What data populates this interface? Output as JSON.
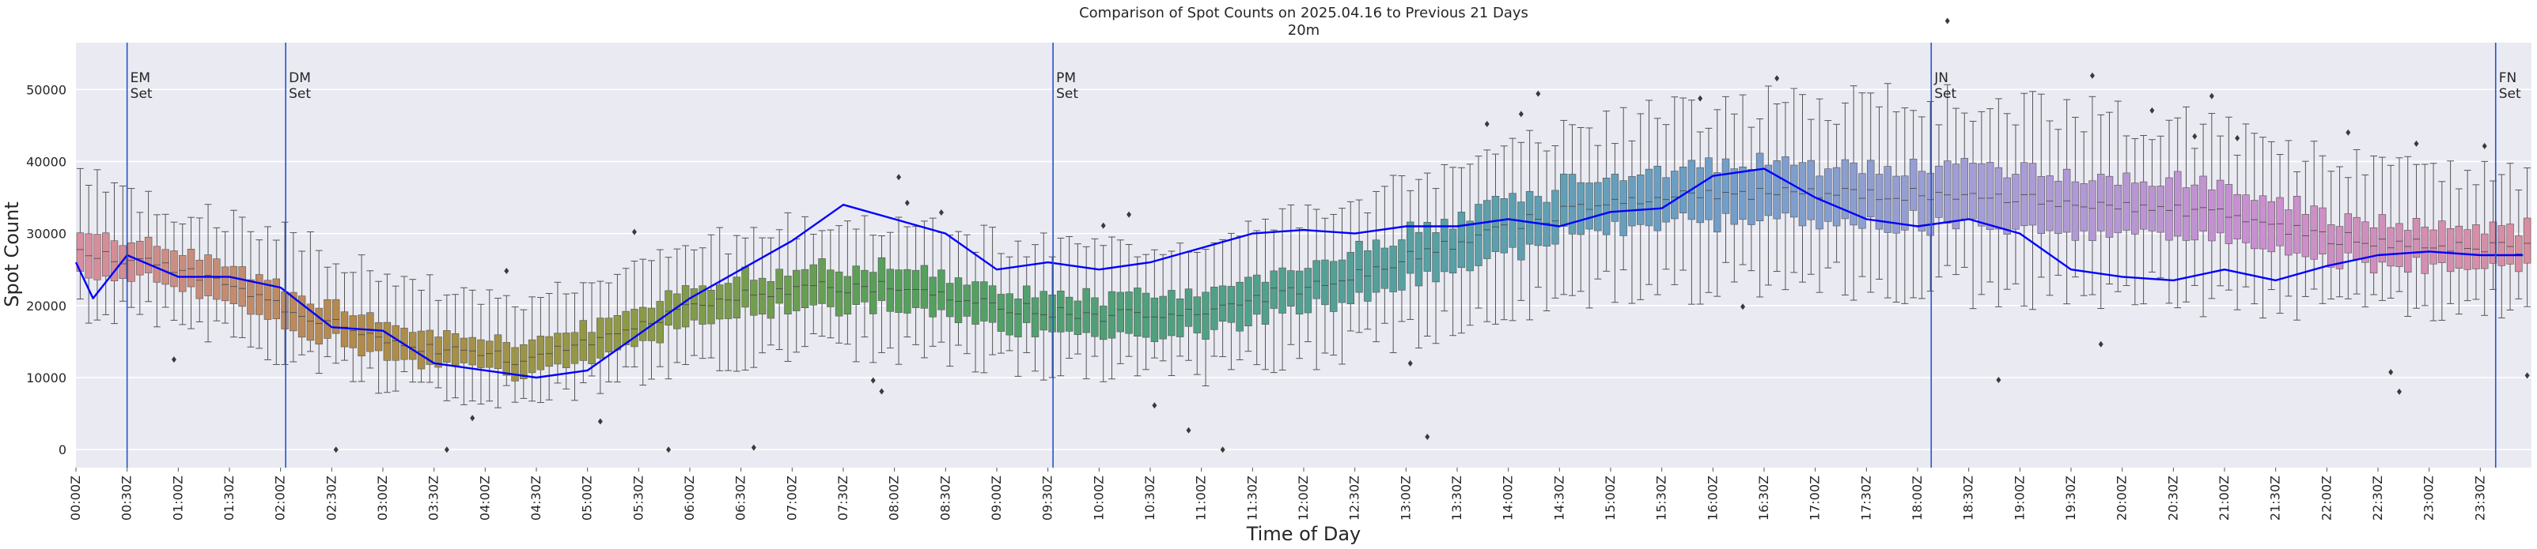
{
  "chart_data": {
    "type": "box",
    "title": "Comparison of Spot Counts on 2025.04.16 to Previous 21 Days",
    "subtitle": "20m",
    "xlabel": "Time of Day",
    "ylabel": "Spot Count",
    "ylim": [
      -2500,
      56500
    ],
    "yticks": [
      0,
      10000,
      20000,
      30000,
      40000,
      50000
    ],
    "ytick_labels": [
      "0",
      "10000",
      "20000",
      "30000",
      "40000",
      "50000"
    ],
    "bin_minutes": 5,
    "num_bins": 288,
    "xtick_labels": [
      "00:00Z",
      "00:30Z",
      "01:00Z",
      "01:30Z",
      "02:00Z",
      "02:30Z",
      "03:00Z",
      "03:30Z",
      "04:00Z",
      "04:30Z",
      "05:00Z",
      "05:30Z",
      "06:00Z",
      "06:30Z",
      "07:00Z",
      "07:30Z",
      "08:00Z",
      "08:30Z",
      "09:00Z",
      "09:30Z",
      "10:00Z",
      "10:30Z",
      "11:00Z",
      "11:30Z",
      "12:00Z",
      "12:30Z",
      "13:00Z",
      "13:30Z",
      "14:00Z",
      "14:30Z",
      "15:00Z",
      "15:30Z",
      "16:00Z",
      "16:30Z",
      "17:00Z",
      "17:30Z",
      "18:00Z",
      "18:30Z",
      "19:00Z",
      "19:30Z",
      "20:00Z",
      "20:30Z",
      "21:00Z",
      "21:30Z",
      "22:00Z",
      "22:30Z",
      "23:00Z",
      "23:30Z"
    ],
    "median_profile": [
      {
        "t": "00:00Z",
        "median": 28000,
        "low": 20000,
        "high": 38000
      },
      {
        "t": "01:00Z",
        "median": 25000,
        "low": 18000,
        "high": 33000
      },
      {
        "t": "02:00Z",
        "median": 20000,
        "low": 13000,
        "high": 30000
      },
      {
        "t": "03:00Z",
        "median": 15000,
        "low": 9500,
        "high": 24000
      },
      {
        "t": "04:00Z",
        "median": 13000,
        "low": 7500,
        "high": 21000
      },
      {
        "t": "04:30Z",
        "median": 12500,
        "low": 7000,
        "high": 21000
      },
      {
        "t": "05:00Z",
        "median": 15000,
        "low": 8500,
        "high": 23000
      },
      {
        "t": "06:00Z",
        "median": 20000,
        "low": 12000,
        "high": 28000
      },
      {
        "t": "07:00Z",
        "median": 22500,
        "low": 14000,
        "high": 31000
      },
      {
        "t": "08:00Z",
        "median": 22500,
        "low": 14000,
        "high": 31000
      },
      {
        "t": "09:00Z",
        "median": 20000,
        "low": 12000,
        "high": 29000
      },
      {
        "t": "10:00Z",
        "median": 18500,
        "low": 11000,
        "high": 28000
      },
      {
        "t": "11:00Z",
        "median": 19500,
        "low": 11000,
        "high": 29000
      },
      {
        "t": "12:00Z",
        "median": 22500,
        "low": 13000,
        "high": 32000
      },
      {
        "t": "13:00Z",
        "median": 26500,
        "low": 16000,
        "high": 37000
      },
      {
        "t": "14:00Z",
        "median": 31000,
        "low": 20000,
        "high": 42000
      },
      {
        "t": "15:00Z",
        "median": 34500,
        "low": 22000,
        "high": 45000
      },
      {
        "t": "16:00Z",
        "median": 35500,
        "low": 23000,
        "high": 47000
      },
      {
        "t": "17:00Z",
        "median": 35500,
        "low": 23000,
        "high": 48000
      },
      {
        "t": "18:00Z",
        "median": 35500,
        "low": 23000,
        "high": 48000
      },
      {
        "t": "19:00Z",
        "median": 35000,
        "low": 22000,
        "high": 48000
      },
      {
        "t": "20:00Z",
        "median": 34000,
        "low": 22000,
        "high": 46000
      },
      {
        "t": "21:00Z",
        "median": 32500,
        "low": 21000,
        "high": 44000
      },
      {
        "t": "22:00Z",
        "median": 29500,
        "low": 20000,
        "high": 40000
      },
      {
        "t": "23:00Z",
        "median": 28500,
        "low": 20000,
        "high": 38000
      },
      {
        "t": "24:00Z",
        "median": 28000,
        "low": 20000,
        "high": 38000
      }
    ],
    "series": [
      {
        "name": "2025.04.16",
        "color": "#0000ff",
        "points": [
          {
            "t": "00:00Z",
            "value": 26000
          },
          {
            "t": "00:10Z",
            "value": 21000
          },
          {
            "t": "00:30Z",
            "value": 27000
          },
          {
            "t": "01:00Z",
            "value": 24000
          },
          {
            "t": "01:30Z",
            "value": 24000
          },
          {
            "t": "02:00Z",
            "value": 22500
          },
          {
            "t": "02:30Z",
            "value": 17000
          },
          {
            "t": "03:00Z",
            "value": 16500
          },
          {
            "t": "03:30Z",
            "value": 12000
          },
          {
            "t": "04:00Z",
            "value": 11000
          },
          {
            "t": "04:30Z",
            "value": 10000
          },
          {
            "t": "05:00Z",
            "value": 11000
          },
          {
            "t": "05:30Z",
            "value": 16000
          },
          {
            "t": "06:00Z",
            "value": 21000
          },
          {
            "t": "06:30Z",
            "value": 25000
          },
          {
            "t": "07:00Z",
            "value": 29000
          },
          {
            "t": "07:30Z",
            "value": 34000
          },
          {
            "t": "08:00Z",
            "value": 32000
          },
          {
            "t": "08:30Z",
            "value": 30000
          },
          {
            "t": "09:00Z",
            "value": 25000
          },
          {
            "t": "09:30Z",
            "value": 26000
          },
          {
            "t": "10:00Z",
            "value": 25000
          },
          {
            "t": "10:30Z",
            "value": 26000
          },
          {
            "t": "11:00Z",
            "value": 28000
          },
          {
            "t": "11:30Z",
            "value": 30000
          },
          {
            "t": "12:00Z",
            "value": 30500
          },
          {
            "t": "12:30Z",
            "value": 30000
          },
          {
            "t": "13:00Z",
            "value": 31000
          },
          {
            "t": "13:30Z",
            "value": 31000
          },
          {
            "t": "14:00Z",
            "value": 32000
          },
          {
            "t": "14:30Z",
            "value": 31000
          },
          {
            "t": "15:00Z",
            "value": 33000
          },
          {
            "t": "15:30Z",
            "value": 33500
          },
          {
            "t": "16:00Z",
            "value": 38000
          },
          {
            "t": "16:30Z",
            "value": 39000
          },
          {
            "t": "17:00Z",
            "value": 35000
          },
          {
            "t": "17:30Z",
            "value": 32000
          },
          {
            "t": "18:00Z",
            "value": 31000
          },
          {
            "t": "18:30Z",
            "value": 32000
          },
          {
            "t": "19:00Z",
            "value": 30000
          },
          {
            "t": "19:30Z",
            "value": 25000
          },
          {
            "t": "20:00Z",
            "value": 24000
          },
          {
            "t": "20:30Z",
            "value": 23500
          },
          {
            "t": "21:00Z",
            "value": 25000
          },
          {
            "t": "21:30Z",
            "value": 23500
          },
          {
            "t": "22:00Z",
            "value": 25500
          },
          {
            "t": "22:30Z",
            "value": 27000
          },
          {
            "t": "23:00Z",
            "value": 27500
          },
          {
            "t": "23:30Z",
            "value": 27000
          },
          {
            "t": "23:55Z",
            "value": 27000
          }
        ]
      }
    ],
    "annotations": [
      {
        "time": "00:30Z",
        "label": "EM\nSet",
        "color": "#2255cc"
      },
      {
        "time": "02:03Z",
        "label": "DM\nSet",
        "color": "#2255cc"
      },
      {
        "time": "09:33Z",
        "label": "PM\nSet",
        "color": "#2255cc"
      },
      {
        "time": "18:08Z",
        "label": "JN\nSet",
        "color": "#2255cc"
      },
      {
        "time": "23:39Z",
        "label": "FN\nSet",
        "color": "#2255cc"
      }
    ],
    "palette": [
      "#d98ea0",
      "#b38a4a",
      "#8f9a45",
      "#55a05a",
      "#4fa07f",
      "#57a0a5",
      "#6f9ec9",
      "#a59ed6",
      "#c98fd0",
      "#d98ea0"
    ],
    "grid": true,
    "background": "#eaeaf2",
    "legend": "none"
  }
}
